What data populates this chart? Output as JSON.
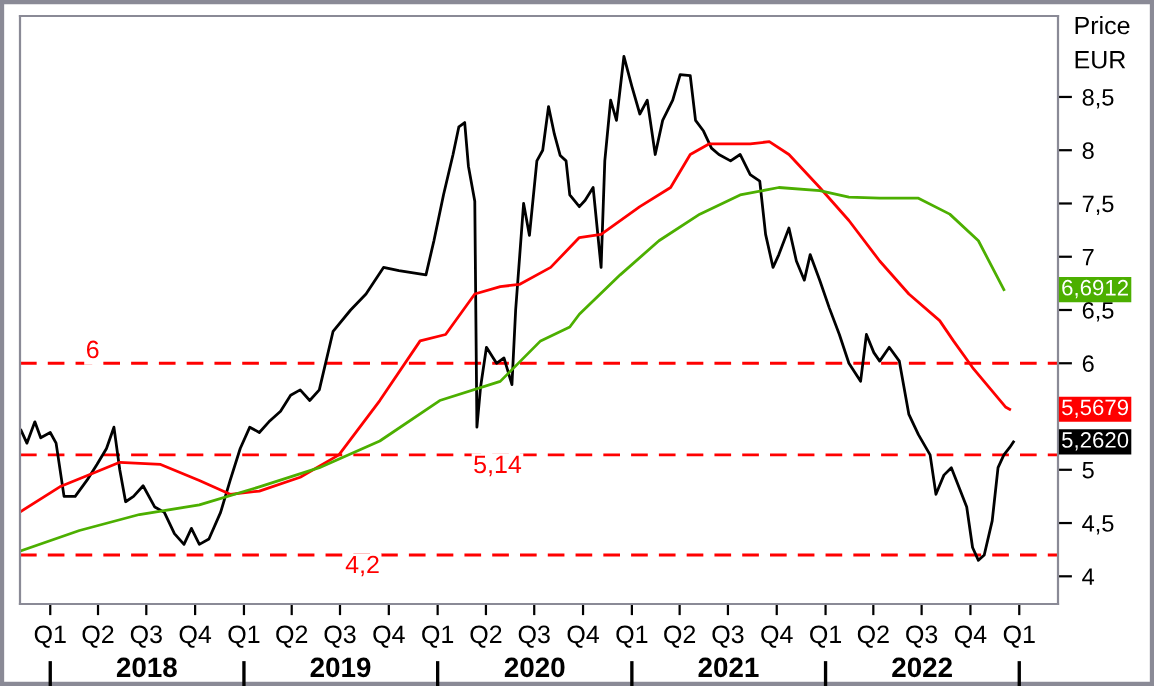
{
  "chart_data": {
    "type": "line",
    "ylabel": "Price\nEUR",
    "xlim": [
      "2017-11-05",
      "2023-03-15"
    ],
    "ylim": [
      3.74,
      9.26
    ],
    "xticks": [
      {
        "value": "2018-01-01",
        "label": "Q1"
      },
      {
        "value": "2018-04-01",
        "label": "Q2"
      },
      {
        "value": "2018-07-01",
        "label": "Q3"
      },
      {
        "value": "2018-10-01",
        "label": "Q4"
      },
      {
        "value": "2019-01-01",
        "label": "Q1"
      },
      {
        "value": "2019-04-01",
        "label": "Q2"
      },
      {
        "value": "2019-07-01",
        "label": "Q3"
      },
      {
        "value": "2019-10-01",
        "label": "Q4"
      },
      {
        "value": "2020-01-01",
        "label": "Q1"
      },
      {
        "value": "2020-04-01",
        "label": "Q2"
      },
      {
        "value": "2020-07-01",
        "label": "Q3"
      },
      {
        "value": "2020-10-01",
        "label": "Q4"
      },
      {
        "value": "2021-01-01",
        "label": "Q1"
      },
      {
        "value": "2021-04-01",
        "label": "Q2"
      },
      {
        "value": "2021-07-01",
        "label": "Q3"
      },
      {
        "value": "2021-10-01",
        "label": "Q4"
      },
      {
        "value": "2022-01-01",
        "label": "Q1"
      },
      {
        "value": "2022-04-01",
        "label": "Q2"
      },
      {
        "value": "2022-07-01",
        "label": "Q3"
      },
      {
        "value": "2022-10-01",
        "label": "Q4"
      },
      {
        "value": "2023-01-01",
        "label": "Q1"
      }
    ],
    "x2lim": [
      "2017-11-05",
      "2023-03-15"
    ],
    "x2ticks": [
      {
        "value": "2018-01-01",
        "label": null
      },
      {
        "value": "2018-07-02",
        "label": "2018"
      },
      {
        "value": "2019-01-01",
        "label": null
      },
      {
        "value": "2019-07-02",
        "label": "2019"
      },
      {
        "value": "2020-01-01",
        "label": null
      },
      {
        "value": "2020-07-02",
        "label": "2020"
      },
      {
        "value": "2021-01-01",
        "label": null
      },
      {
        "value": "2021-07-02",
        "label": "2021"
      },
      {
        "value": "2022-01-01",
        "label": null
      },
      {
        "value": "2022-07-02",
        "label": "2022"
      },
      {
        "value": "2023-01-01",
        "label": null
      }
    ],
    "yticks": [
      4,
      {
        "value": 4.5,
        "label": "4,5"
      },
      5,
      {
        "value": 5.5,
        "label": null
      },
      6,
      {
        "value": 6.5,
        "label": "6,5"
      },
      7,
      {
        "value": 7.5,
        "label": "7,5"
      },
      8,
      {
        "value": 8.5,
        "label": "8,5"
      }
    ],
    "grid": false,
    "legend": false,
    "ref_lines": [
      {
        "axis": "y",
        "value": 6,
        "label": "6",
        "color": "#ff0000",
        "line_style": "dashed"
      },
      {
        "axis": "y",
        "value": 5.14,
        "label": "5,14",
        "color": "#ff0000",
        "line_style": "dashed"
      },
      {
        "axis": "y",
        "value": 4.2,
        "label": "4,2",
        "color": "#ff0000",
        "line_style": "dashed"
      }
    ],
    "annotations": [
      {
        "text": "5,2620",
        "x": "2022-12-21",
        "y": 5.262
      },
      {
        "text": "5,5679",
        "x": "2022-12-14",
        "y": 5.5679
      },
      {
        "text": "6,6912",
        "x": "2022-12-03",
        "y": 6.6912
      }
    ],
    "series": [
      {
        "color": "#000000",
        "x": [
          "2017-11-07",
          "2017-11-18",
          "2017-12-03",
          "2017-12-14",
          "2018-01-01",
          "2018-01-12",
          "2018-01-27",
          "2018-02-17",
          "2018-03-11",
          "2018-03-30",
          "2018-04-17",
          "2018-05-01",
          "2018-05-12",
          "2018-05-23",
          "2018-06-07",
          "2018-06-25",
          "2018-07-17",
          "2018-08-04",
          "2018-08-23",
          "2018-09-10",
          "2018-09-24",
          "2018-10-09",
          "2018-10-27",
          "2018-11-18",
          "2018-12-06",
          "2018-12-25",
          "2019-01-12",
          "2019-01-30",
          "2019-02-17",
          "2019-03-11",
          "2019-03-30",
          "2019-04-17",
          "2019-05-05",
          "2019-05-23",
          "2019-06-18",
          "2019-07-21",
          "2019-08-19",
          "2019-09-21",
          "2019-10-20",
          "2019-12-10",
          "2019-12-25",
          "2020-01-12",
          "2020-01-30",
          "2020-02-10",
          "2020-02-21",
          "2020-02-28",
          "2020-03-11",
          "2020-03-15",
          "2020-03-22",
          "2020-04-02",
          "2020-04-21",
          "2020-05-05",
          "2020-05-20",
          "2020-05-27",
          "2020-06-11",
          "2020-06-22",
          "2020-07-06",
          "2020-07-17",
          "2020-07-28",
          "2020-08-08",
          "2020-08-19",
          "2020-08-30",
          "2020-09-06",
          "2020-09-24",
          "2020-10-05",
          "2020-10-20",
          "2020-11-04",
          "2020-11-11",
          "2020-11-22",
          "2020-12-03",
          "2020-12-17",
          "2021-01-01",
          "2021-01-16",
          "2021-01-30",
          "2021-02-14",
          "2021-02-28",
          "2021-03-19",
          "2021-04-02",
          "2021-04-21",
          "2021-05-01",
          "2021-05-16",
          "2021-05-31",
          "2021-06-14",
          "2021-07-06",
          "2021-07-24",
          "2021-08-12",
          "2021-08-30",
          "2021-09-10",
          "2021-09-24",
          "2021-10-05",
          "2021-10-24",
          "2021-11-07",
          "2021-11-22",
          "2021-12-03",
          "2021-12-21",
          "2022-01-08",
          "2022-01-27",
          "2022-02-14",
          "2022-03-08",
          "2022-03-19",
          "2022-04-02",
          "2022-04-13",
          "2022-05-01",
          "2022-05-20",
          "2022-06-07",
          "2022-06-25",
          "2022-07-17",
          "2022-07-28",
          "2022-08-12",
          "2022-08-26",
          "2022-09-10",
          "2022-09-24",
          "2022-10-05",
          "2022-10-16",
          "2022-10-27",
          "2022-11-11",
          "2022-11-22",
          "2022-12-03",
          "2022-12-14",
          "2022-12-21"
        ],
        "values": [
          5.37,
          5.25,
          5.45,
          5.3,
          5.35,
          5.25,
          4.75,
          4.75,
          4.9,
          5.05,
          5.2,
          5.4,
          5.0,
          4.7,
          4.75,
          4.85,
          4.65,
          4.6,
          4.4,
          4.3,
          4.45,
          4.3,
          4.35,
          4.6,
          4.9,
          5.2,
          5.4,
          5.35,
          5.45,
          5.55,
          5.7,
          5.75,
          5.65,
          5.75,
          6.3,
          6.5,
          6.65,
          6.9,
          6.87,
          6.83,
          7.15,
          7.58,
          7.96,
          8.22,
          8.26,
          7.85,
          7.52,
          5.4,
          5.78,
          6.15,
          6.0,
          6.05,
          5.8,
          6.5,
          7.5,
          7.2,
          7.9,
          8.0,
          8.41,
          8.15,
          7.95,
          7.9,
          7.58,
          7.47,
          7.53,
          7.65,
          6.9,
          7.9,
          8.47,
          8.28,
          8.88,
          8.6,
          8.34,
          8.47,
          7.96,
          8.28,
          8.47,
          8.71,
          8.7,
          8.28,
          8.18,
          8.02,
          7.96,
          7.9,
          7.96,
          7.77,
          7.71,
          7.21,
          6.9,
          7.02,
          7.27,
          6.96,
          6.78,
          7.02,
          6.78,
          6.52,
          6.27,
          6.0,
          5.83,
          6.27,
          6.1,
          6.02,
          6.15,
          6.02,
          5.52,
          5.33,
          5.14,
          4.77,
          4.95,
          5.02,
          4.83,
          4.65,
          4.27,
          4.15,
          4.2,
          4.52,
          5.02,
          5.14,
          5.21,
          5.262
        ]
      },
      {
        "color": "#ff0000",
        "x": [
          "2017-11-07",
          "2018-01-19",
          "2018-03-19",
          "2018-05-12",
          "2018-07-28",
          "2018-10-09",
          "2018-12-06",
          "2019-01-30",
          "2019-04-17",
          "2019-06-29",
          "2019-09-14",
          "2019-11-29",
          "2020-01-16",
          "2020-03-11",
          "2020-04-28",
          "2020-06-03",
          "2020-08-01",
          "2020-09-24",
          "2020-11-04",
          "2021-01-16",
          "2021-03-15",
          "2021-04-21",
          "2021-05-27",
          "2021-08-12",
          "2021-09-17",
          "2021-10-24",
          "2021-12-21",
          "2022-02-14",
          "2022-04-13",
          "2022-06-07",
          "2022-08-04",
          "2022-08-30",
          "2022-10-05",
          "2022-12-06",
          "2022-12-14"
        ],
        "values": [
          4.61,
          4.84,
          4.96,
          5.07,
          5.05,
          4.9,
          4.77,
          4.8,
          4.93,
          5.14,
          5.65,
          6.21,
          6.27,
          6.65,
          6.72,
          6.74,
          6.9,
          7.18,
          7.21,
          7.47,
          7.65,
          7.96,
          8.06,
          8.06,
          8.08,
          7.96,
          7.65,
          7.34,
          6.96,
          6.65,
          6.4,
          6.21,
          5.96,
          5.59,
          5.5679
        ]
      },
      {
        "color": "#4caf00",
        "x": [
          "2017-11-07",
          "2018-02-25",
          "2018-06-18",
          "2018-10-09",
          "2019-01-30",
          "2019-05-23",
          "2019-09-14",
          "2020-01-05",
          "2020-04-28",
          "2020-07-13",
          "2020-09-06",
          "2020-09-24",
          "2020-12-10",
          "2021-02-21",
          "2021-05-09",
          "2021-07-24",
          "2021-10-05",
          "2021-12-21",
          "2022-02-14",
          "2022-04-13",
          "2022-06-25",
          "2022-08-23",
          "2022-10-16",
          "2022-12-03"
        ],
        "values": [
          4.24,
          4.43,
          4.58,
          4.67,
          4.84,
          5.02,
          5.27,
          5.65,
          5.83,
          6.21,
          6.34,
          6.46,
          6.83,
          7.15,
          7.4,
          7.58,
          7.65,
          7.62,
          7.56,
          7.55,
          7.55,
          7.4,
          7.15,
          6.6912
        ]
      }
    ]
  }
}
